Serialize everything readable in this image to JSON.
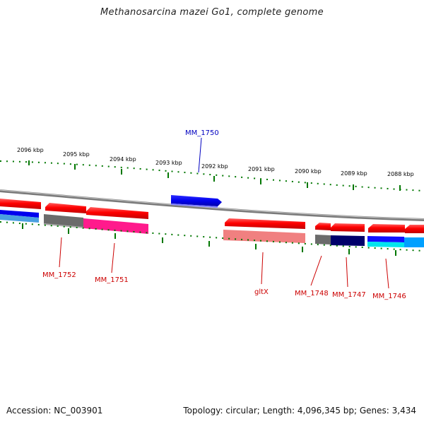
{
  "header": {
    "title": "Methanosarcina mazei Go1, complete genome"
  },
  "scale": {
    "ticks": [
      "2096 kbp",
      "2095 kbp",
      "2094 kbp",
      "2093 kbp",
      "2092 kbp",
      "2091 kbp",
      "2090 kbp",
      "2089 kbp",
      "2088 kbp"
    ]
  },
  "genes": {
    "forward": [
      "MM_1750"
    ],
    "reverse": [
      "MM_1752",
      "MM_1751",
      "gltX",
      "MM_1748",
      "MM_1747",
      "MM_1746"
    ]
  },
  "colors": {
    "forward_label": "#0000c0",
    "reverse_label": "#cc0000",
    "gene_red": "#ff0000",
    "gene_blue": "#0000ee",
    "backbone": "#888888",
    "tick": "#007700"
  },
  "footer": {
    "accession": "Accession: NC_003901",
    "topology": "Topology: circular; Length: 4,096,345 bp; Genes: 3,434"
  }
}
